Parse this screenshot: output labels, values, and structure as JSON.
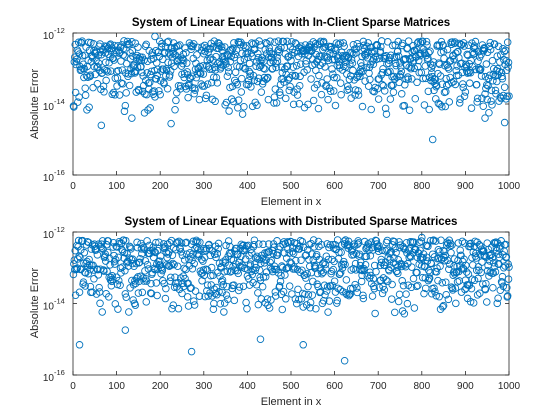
{
  "chart_data": [
    {
      "type": "scatter",
      "title": "System of Linear Equations with In-Client Sparse Matrices",
      "xlabel": "Element in x",
      "ylabel": "Absolute Error",
      "xlim": [
        0,
        1000
      ],
      "ylim": [
        1e-16,
        1e-12
      ],
      "yscale": "log",
      "xticks": [
        "0",
        "100",
        "200",
        "300",
        "400",
        "500",
        "600",
        "700",
        "800",
        "900",
        "1000"
      ],
      "yticks": [
        {
          "base": "10",
          "exp": "-16"
        },
        {
          "base": "10",
          "exp": "-14"
        },
        {
          "base": "10",
          "exp": "-12"
        }
      ],
      "marker": "o",
      "marker_color": "#0072BD",
      "num_points": 1000,
      "typical_range": [
        5e-15,
        6e-13
      ],
      "notable_points": [
        {
          "x": 188,
          "y": 8e-13
        },
        {
          "x": 65,
          "y": 2.5e-15
        },
        {
          "x": 225,
          "y": 2.8e-15
        },
        {
          "x": 135,
          "y": 4e-15
        },
        {
          "x": 825,
          "y": 1e-15
        },
        {
          "x": 990,
          "y": 3e-15
        },
        {
          "x": 945,
          "y": 4e-15
        },
        {
          "x": 684,
          "y": 7e-15
        }
      ]
    },
    {
      "type": "scatter",
      "title": "System of Linear Equations with Distributed Sparse Matrices",
      "xlabel": "Element in x",
      "ylabel": "Absolute Error",
      "xlim": [
        0,
        1000
      ],
      "ylim": [
        1e-16,
        1e-12
      ],
      "yscale": "log",
      "xticks": [
        "0",
        "100",
        "200",
        "300",
        "400",
        "500",
        "600",
        "700",
        "800",
        "900",
        "1000"
      ],
      "yticks": [
        {
          "base": "10",
          "exp": "-16"
        },
        {
          "base": "10",
          "exp": "-14"
        },
        {
          "base": "10",
          "exp": "-12"
        }
      ],
      "marker": "o",
      "marker_color": "#0072BD",
      "num_points": 1000,
      "typical_range": [
        5e-15,
        6e-13
      ],
      "notable_points": [
        {
          "x": 800,
          "y": 7e-13
        },
        {
          "x": 623,
          "y": 2.5e-16
        },
        {
          "x": 272,
          "y": 4.5e-16
        },
        {
          "x": 15,
          "y": 7e-16
        },
        {
          "x": 120,
          "y": 1.8e-15
        },
        {
          "x": 430,
          "y": 1e-15
        },
        {
          "x": 528,
          "y": 7e-16
        },
        {
          "x": 975,
          "y": 1.4e-14
        }
      ]
    }
  ]
}
